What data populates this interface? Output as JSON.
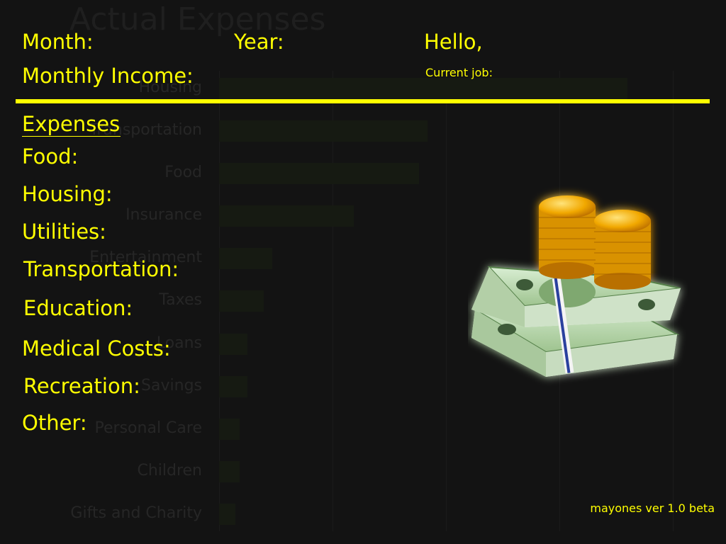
{
  "background_chart": {
    "title": "Actual Expenses",
    "categories": [
      "Housing",
      "Transportation",
      "Food",
      "Insurance",
      "Entertainment",
      "Taxes",
      "Loans",
      "Savings",
      "Personal Care",
      "Children",
      "Gifts and Charity"
    ],
    "values": [
      100,
      51,
      49,
      33,
      13,
      11,
      7,
      7,
      5,
      5,
      4
    ]
  },
  "header": {
    "month_label": "Month:",
    "year_label": "Year:",
    "greeting": "Hello,",
    "income_label": "Monthly Income:",
    "current_job_label": "Current job:"
  },
  "expenses": {
    "heading": "Expenses",
    "items": [
      "Food:",
      "Housing:",
      "Utilities:",
      "Transportation:",
      "Education:",
      "Medical Costs:",
      "Recreation:",
      "Other:"
    ]
  },
  "illustration": {
    "icon": "money-stack-icon"
  },
  "footer": {
    "version": "mayones ver 1.0 beta"
  },
  "colors": {
    "accent": "#ffff00",
    "background": "#131313"
  }
}
